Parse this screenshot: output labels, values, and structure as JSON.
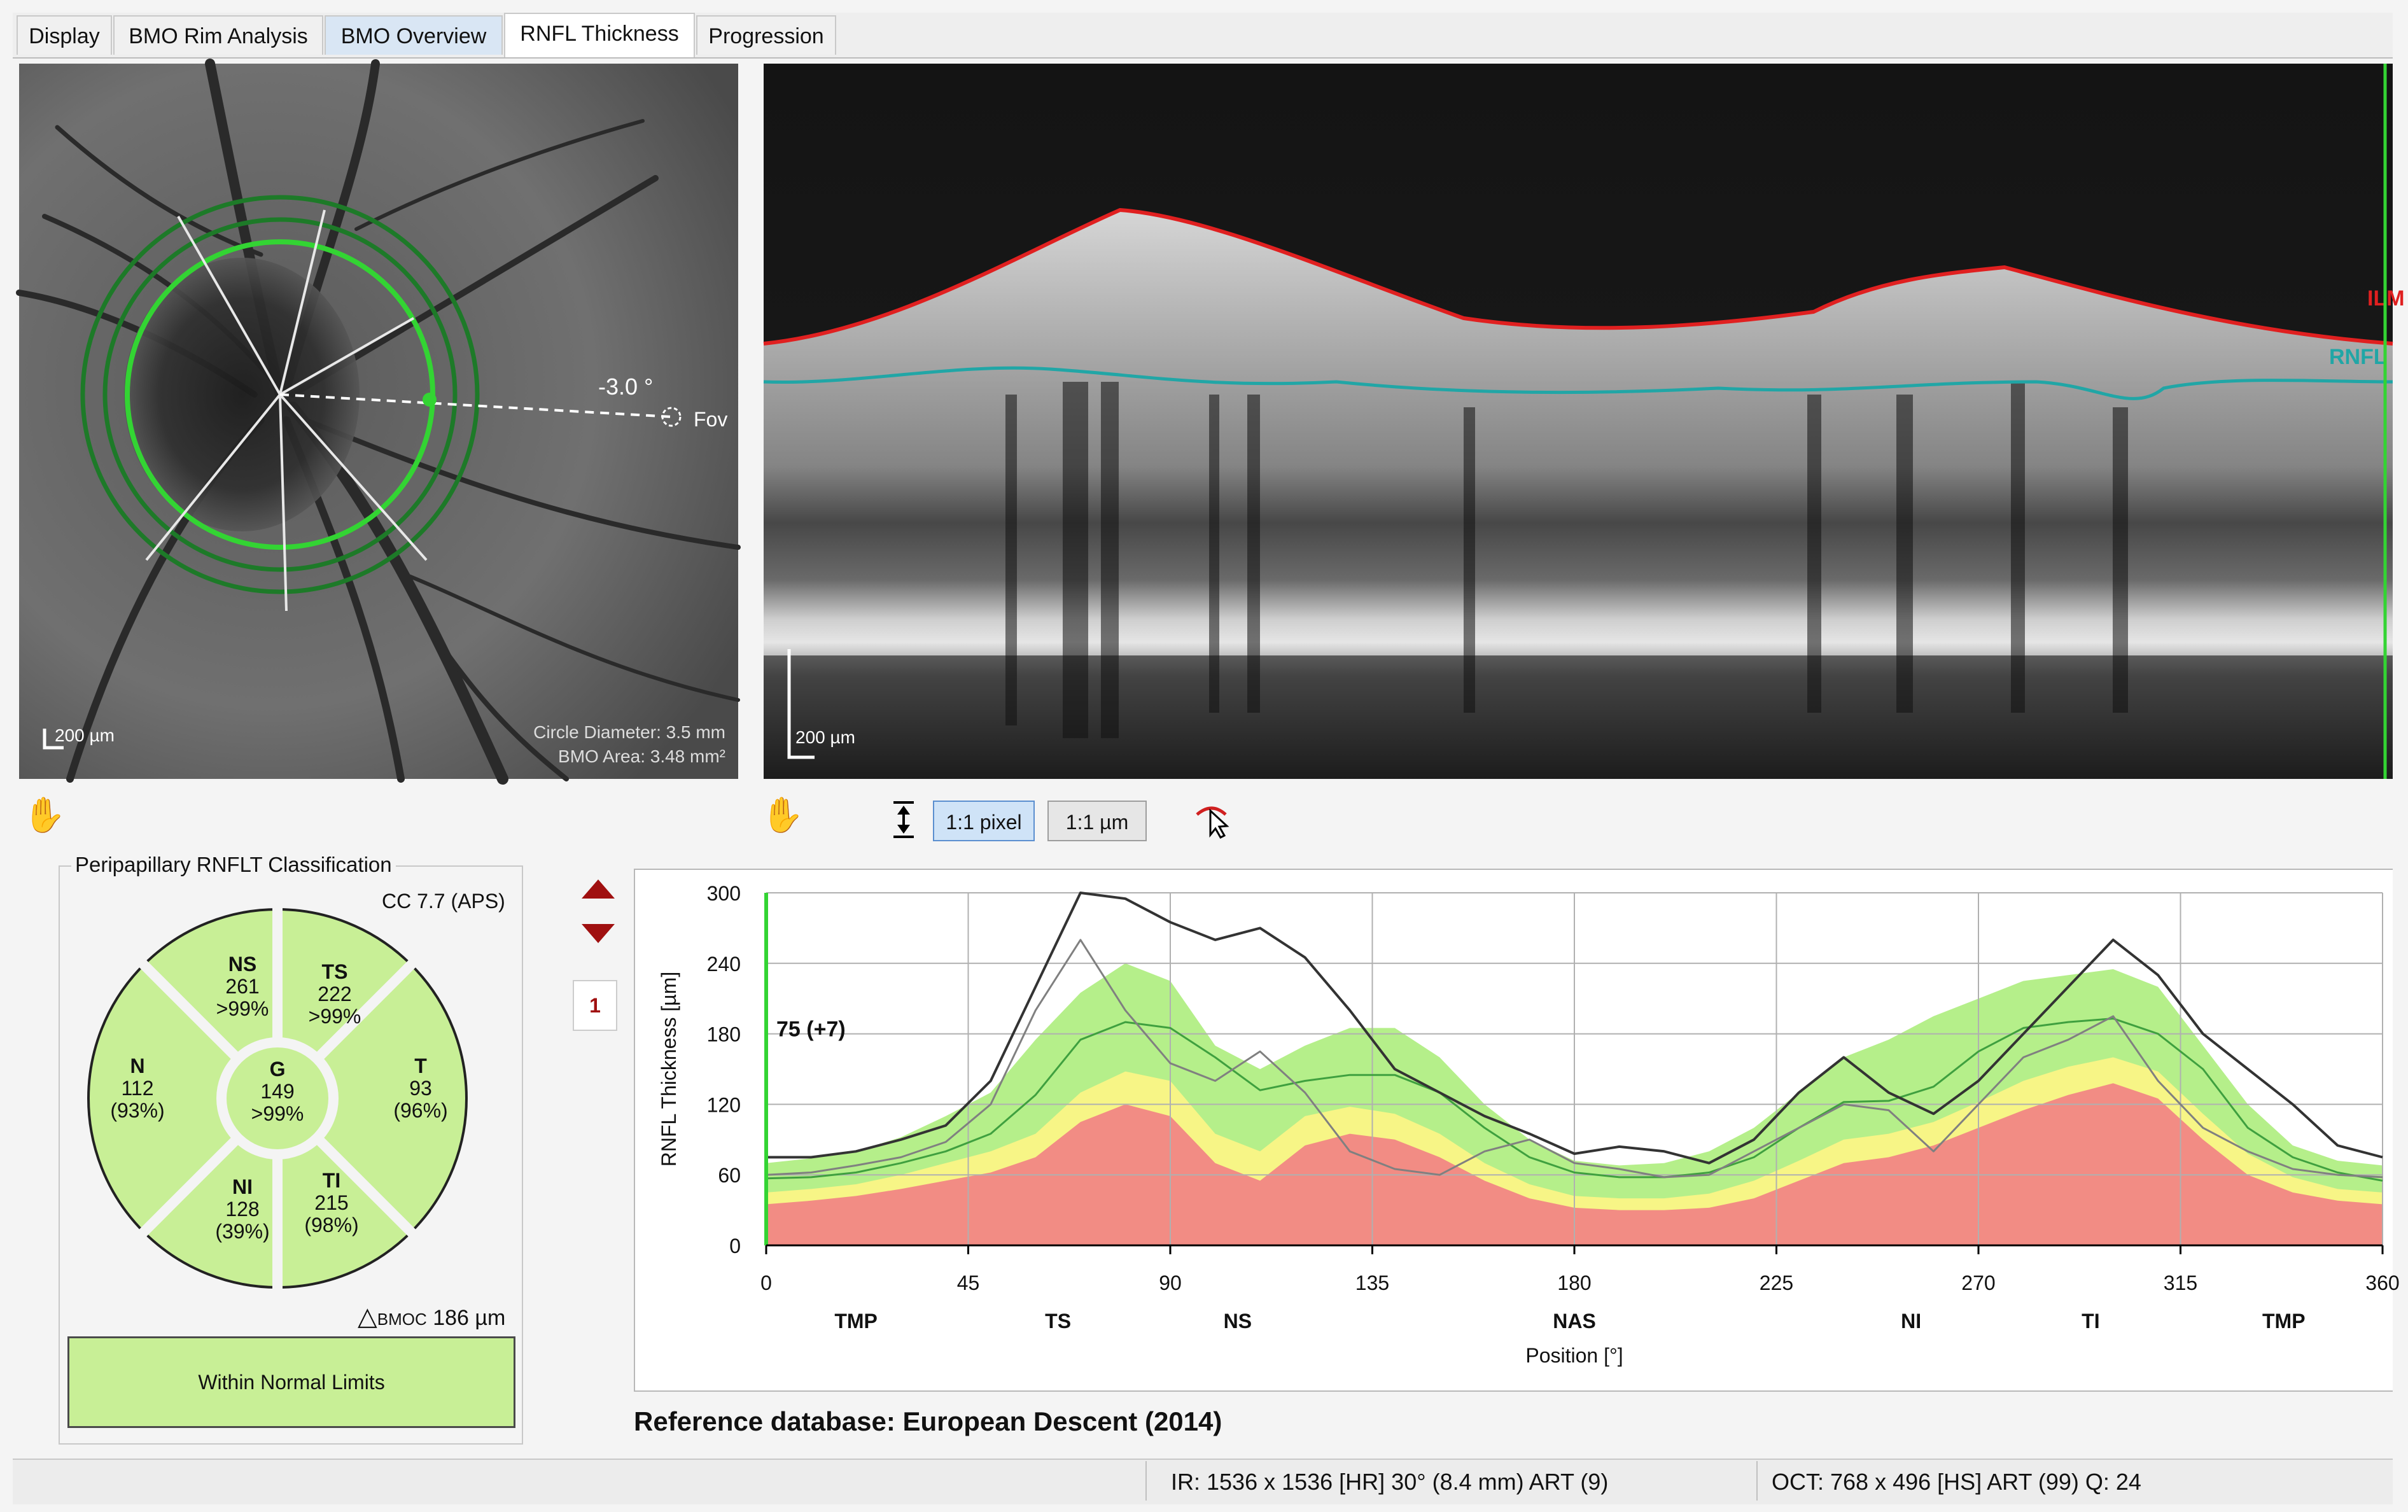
{
  "tabs": [
    {
      "label": "Display",
      "state": "normal"
    },
    {
      "label": "BMO Rim Analysis",
      "state": "normal"
    },
    {
      "label": "BMO Overview",
      "state": "blue"
    },
    {
      "label": "RNFL Thickness",
      "state": "active"
    },
    {
      "label": "Progression",
      "state": "normal"
    }
  ],
  "fundus": {
    "angle_label": "-3.0 °",
    "fovea_label": "Fov",
    "scale_bar": "200 µm",
    "circle_diameter": "Circle Diameter: 3.5 mm",
    "bmo_area": "BMO Area: 3.48 mm²"
  },
  "oct": {
    "ilm_label": "ILM",
    "rnfl_label": "RNFL",
    "scale_bar": "200 µm"
  },
  "toolbar": {
    "pixel_btn": "1:1 pixel",
    "um_btn": "1:1 µm",
    "hand_icon": "hand-icon",
    "fit_icon": "fit-vertical-icon",
    "pointer_icon": "pointer-icon"
  },
  "classification": {
    "title": "Peripapillary RNFLT Classification",
    "cc": "CC 7.7 (APS)",
    "sectors": [
      {
        "id": "NS",
        "name": "NS",
        "value": "261",
        "pct": ">99%"
      },
      {
        "id": "TS",
        "name": "TS",
        "value": "222",
        "pct": ">99%"
      },
      {
        "id": "N",
        "name": "N",
        "value": "112",
        "pct": "(93%)"
      },
      {
        "id": "G",
        "name": "G",
        "value": "149",
        "pct": ">99%"
      },
      {
        "id": "T",
        "name": "T",
        "value": "93",
        "pct": "(96%)"
      },
      {
        "id": "NI",
        "name": "NI",
        "value": "128",
        "pct": "(39%)"
      },
      {
        "id": "TI",
        "name": "TI",
        "value": "215",
        "pct": "(98%)"
      }
    ],
    "bmoc_symbol": "△",
    "bmoc_label": "BMOC",
    "bmoc_value": "186 µm",
    "result": "Within Normal Limits",
    "sector_color": "#c8ef96"
  },
  "nav": {
    "page": "1"
  },
  "chart_data": {
    "type": "line",
    "ylabel": "RNFL Thickness [µm]",
    "xlabel": "Position [°]",
    "ylim": [
      0,
      300
    ],
    "xlim": [
      0,
      360
    ],
    "yticks": [
      0,
      60,
      120,
      180,
      240,
      300
    ],
    "xticks": [
      0,
      45,
      90,
      135,
      180,
      225,
      270,
      315,
      360
    ],
    "sector_labels": [
      {
        "x": 20,
        "label": "TMP"
      },
      {
        "x": 65,
        "label": "TS"
      },
      {
        "x": 105,
        "label": "NS"
      },
      {
        "x": 180,
        "label": "NAS"
      },
      {
        "x": 255,
        "label": "NI"
      },
      {
        "x": 295,
        "label": "TI"
      },
      {
        "x": 338,
        "label": "TMP"
      }
    ],
    "annotation": "75 (+7)",
    "x": [
      0,
      10,
      20,
      30,
      40,
      50,
      60,
      70,
      80,
      90,
      100,
      110,
      120,
      130,
      140,
      150,
      160,
      170,
      180,
      190,
      200,
      210,
      220,
      230,
      240,
      250,
      260,
      270,
      280,
      290,
      300,
      310,
      320,
      330,
      340,
      350,
      360
    ],
    "bands": {
      "red_top": [
        35,
        38,
        42,
        48,
        55,
        62,
        75,
        105,
        120,
        110,
        70,
        55,
        85,
        95,
        90,
        75,
        55,
        40,
        32,
        30,
        30,
        32,
        40,
        55,
        70,
        75,
        85,
        100,
        115,
        128,
        138,
        125,
        90,
        60,
        45,
        38,
        35
      ],
      "yellow_top": [
        45,
        48,
        52,
        60,
        70,
        80,
        95,
        130,
        148,
        140,
        95,
        80,
        110,
        118,
        112,
        95,
        70,
        52,
        42,
        40,
        40,
        44,
        55,
        72,
        90,
        95,
        105,
        122,
        140,
        152,
        160,
        148,
        112,
        78,
        58,
        48,
        45
      ],
      "green_top": [
        70,
        74,
        80,
        92,
        110,
        130,
        175,
        215,
        240,
        225,
        170,
        150,
        170,
        185,
        185,
        160,
        120,
        90,
        72,
        68,
        70,
        80,
        100,
        130,
        160,
        175,
        195,
        210,
        225,
        230,
        235,
        220,
        170,
        120,
        85,
        72,
        68
      ],
      "color_red": "#f28c84",
      "color_yellow": "#f7f586",
      "color_green": "#b5ef8a"
    },
    "series": [
      {
        "values": [
          57,
          58,
          62,
          70,
          80,
          95,
          128,
          175,
          190,
          185,
          160,
          132,
          140,
          145,
          145,
          130,
          100,
          75,
          62,
          58,
          58,
          62,
          75,
          100,
          122,
          123,
          135,
          165,
          185,
          190,
          193,
          180,
          150,
          100,
          75,
          62,
          55
        ],
        "color": "#3fa03f",
        "width": 3
      },
      {
        "values": [
          75,
          75,
          80,
          90,
          102,
          140,
          220,
          300,
          295,
          275,
          260,
          270,
          245,
          200,
          150,
          130,
          110,
          95,
          78,
          84,
          80,
          70,
          90,
          130,
          160,
          130,
          112,
          140,
          180,
          220,
          260,
          230,
          180,
          150,
          120,
          85,
          75
        ],
        "color": "#333333",
        "width": 4
      },
      {
        "values": [
          60,
          62,
          68,
          75,
          88,
          120,
          200,
          260,
          200,
          155,
          140,
          165,
          130,
          80,
          65,
          60,
          80,
          90,
          70,
          65,
          58,
          60,
          80,
          100,
          120,
          115,
          80,
          120,
          160,
          175,
          195,
          140,
          100,
          80,
          65,
          60,
          58
        ],
        "color": "#808080",
        "width": 3
      }
    ],
    "reference_db": "Reference database: European Descent (2014)"
  },
  "status": {
    "ir": "IR: 1536 x 1536 [HR] 30° (8.4 mm) ART (9)",
    "oct": "OCT: 768 x 496 [HS] ART (99) Q: 24"
  }
}
